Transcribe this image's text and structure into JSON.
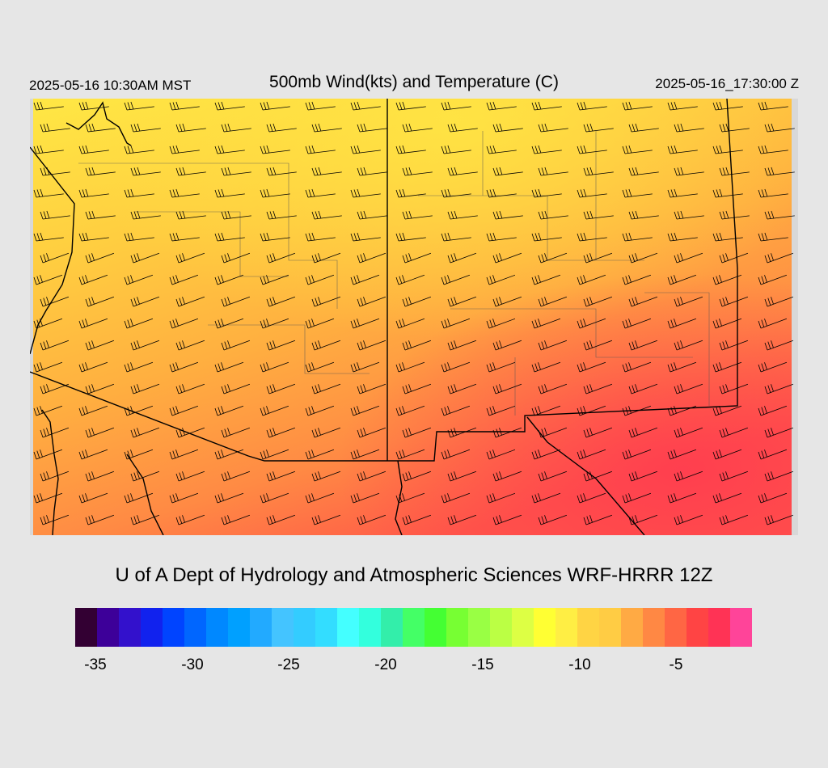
{
  "header": {
    "local_time": "2025-05-16 10:30AM MST",
    "title": "500mb Wind(kts) and Temperature (C)",
    "utc_time": "2025-05-16_17:30:00 Z"
  },
  "footer": {
    "credit": "U of A Dept of Hydrology and Atmospheric Sciences WRF-HRRR 12Z"
  },
  "colorbar": {
    "colors": [
      "#330033",
      "#3d0099",
      "#3311cc",
      "#1122ee",
      "#0044ff",
      "#0066ff",
      "#0088ff",
      "#00a0ff",
      "#22aaff",
      "#44c4ff",
      "#33ccff",
      "#33ddff",
      "#44ffff",
      "#33ffdd",
      "#33eeaa",
      "#44ff66",
      "#44ff33",
      "#77ff33",
      "#99ff44",
      "#bbff44",
      "#ddff44",
      "#ffff33",
      "#ffee44",
      "#ffd444",
      "#ffcc44",
      "#ffaa44",
      "#ff8844",
      "#ff6644",
      "#ff4444",
      "#ff3355",
      "#ff4499",
      "#ff77cc",
      "#ffa0ee",
      "#ffc4f0",
      "#ffe4f8",
      "#fff4ff"
    ],
    "labels": [
      "-35",
      "-30",
      "-25",
      "-20",
      "-15",
      "-10",
      "-5"
    ]
  },
  "map": {
    "field": "500mb temperature (C) with wind barbs (kts)",
    "temperature_colors": {
      "cold_north": "#ffe844",
      "mid": "#ffc840",
      "warm": "#ff9d40",
      "warmer": "#ff6e44",
      "warmest_southeast": "#ff3a50"
    },
    "line_color": "#000000"
  }
}
